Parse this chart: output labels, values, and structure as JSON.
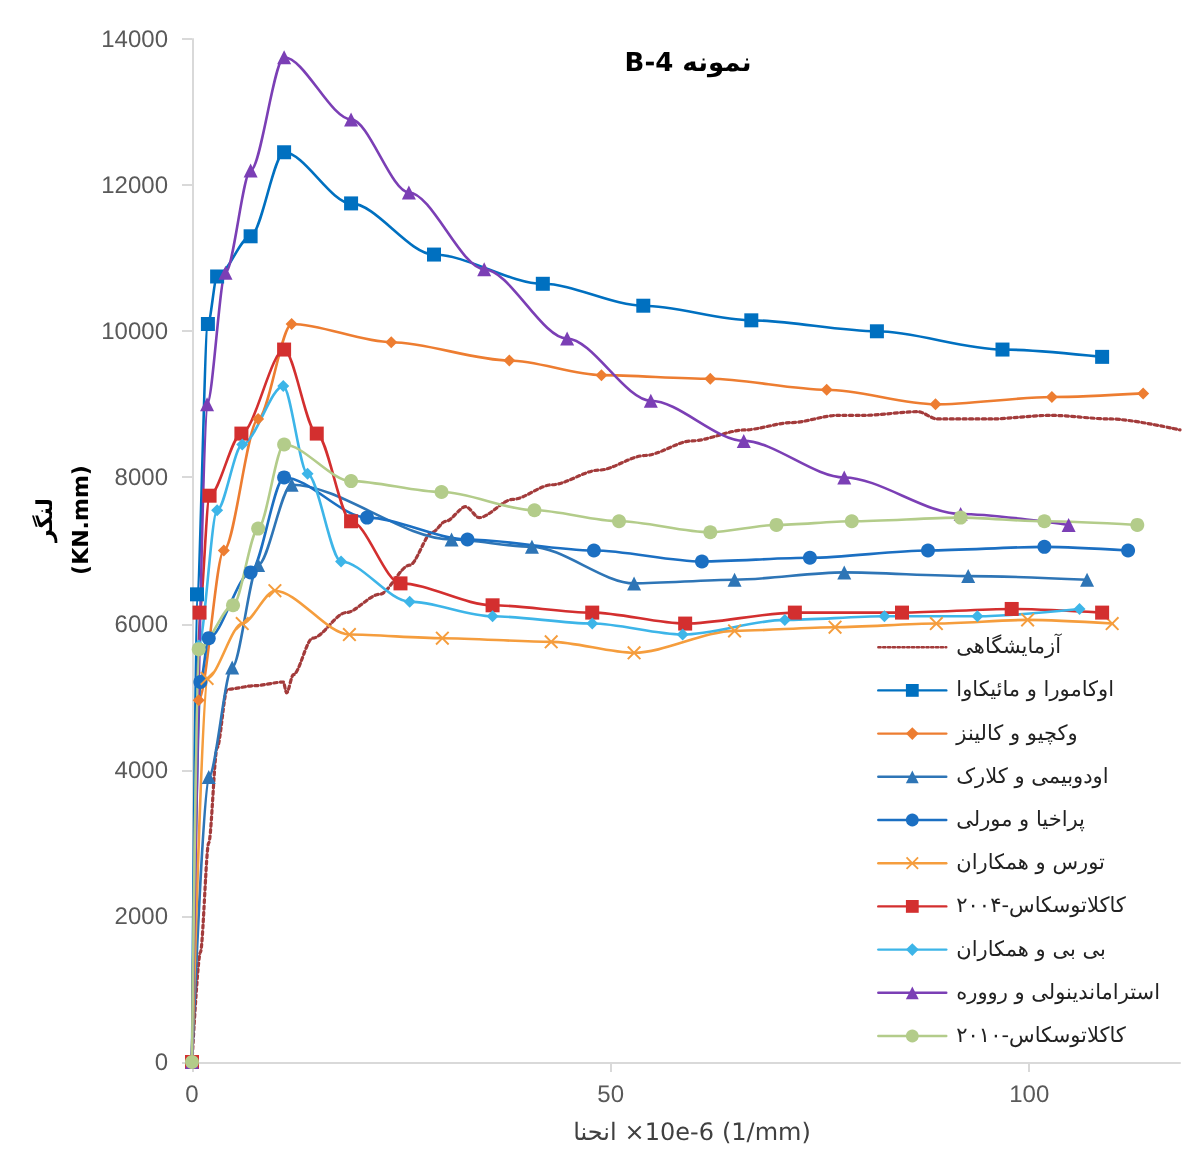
{
  "chart_data": {
    "type": "line",
    "title": "نمونه B-4",
    "xlabel": "انحنا ×10e-6 (1/mm)",
    "ylabel": "لنگر (KN.mm)",
    "xlim": [
      0,
      118
    ],
    "xticks": [
      0,
      50,
      100
    ],
    "ylim": [
      0,
      14000
    ],
    "yticks": [
      0,
      2000,
      4000,
      6000,
      8000,
      10000,
      12000,
      14000
    ],
    "legend": "bottom right",
    "series": [
      {
        "name": "آزمایشگاهی",
        "color": "#a33b3b",
        "marker": "none",
        "line_style": "dotted",
        "x": [
          0,
          1.0,
          2.0,
          3.0,
          4.2,
          7.5,
          10.9,
          11.3,
          12.1,
          14.4,
          18.4,
          22.4,
          26.0,
          28.7,
          30.3,
          32.7,
          34.3,
          38.3,
          43.0,
          48.6,
          54.1,
          59.7,
          66.0,
          71.6,
          77.1,
          80.3,
          86.7,
          89.0,
          95.4,
          102.5,
          109.7,
          118
        ],
        "values": [
          0,
          1500,
          3000,
          4300,
          5100,
          5150,
          5200,
          5050,
          5300,
          5800,
          6150,
          6400,
          6800,
          7250,
          7400,
          7600,
          7450,
          7700,
          7900,
          8100,
          8300,
          8500,
          8650,
          8750,
          8850,
          8850,
          8900,
          8800,
          8800,
          8850,
          8800,
          8650
        ]
      },
      {
        "name": "اوکامورا و مائیکاوا",
        "color": "#0070c0",
        "marker": "square",
        "line_style": "solid",
        "x": [
          0,
          0.6,
          1.9,
          3.0,
          7.0,
          11.0,
          19.0,
          28.9,
          41.9,
          53.9,
          66.8,
          81.8,
          96.8,
          108.7
        ],
        "values": [
          0,
          6400,
          10100,
          10750,
          11300,
          12450,
          11750,
          11050,
          10650,
          10350,
          10150,
          10000,
          9750,
          9650
        ]
      },
      {
        "name": "وکچیو و کالینز",
        "color": "#ed7d31",
        "marker": "diamond",
        "line_style": "solid",
        "x": [
          0,
          0.8,
          3.8,
          7.9,
          11.9,
          23.8,
          37.9,
          48.9,
          61.9,
          75.8,
          88.8,
          102.7,
          113.6
        ],
        "values": [
          0,
          4950,
          7000,
          8800,
          10100,
          9850,
          9600,
          9400,
          9350,
          9200,
          9000,
          9100,
          9150
        ]
      },
      {
        "name": "اودوبیمی و کلارک",
        "color": "#2e75b6",
        "marker": "triangle",
        "line_style": "solid",
        "x": [
          0,
          2.0,
          4.8,
          7.9,
          11.9,
          31.0,
          40.6,
          52.8,
          64.8,
          77.9,
          92.7,
          106.9
        ],
        "values": [
          0,
          3900,
          5400,
          6800,
          7900,
          7150,
          7050,
          6550,
          6600,
          6700,
          6650,
          6600
        ]
      },
      {
        "name": "پراخیا و مورلی",
        "color": "#1b6fc2",
        "marker": "circle",
        "line_style": "solid",
        "x": [
          0,
          1.0,
          2.0,
          7.0,
          11.0,
          20.9,
          32.9,
          48.0,
          60.9,
          73.8,
          87.9,
          101.8,
          111.8
        ],
        "values": [
          0,
          5200,
          5800,
          6700,
          8000,
          7450,
          7150,
          7000,
          6850,
          6900,
          7000,
          7050,
          7000
        ]
      },
      {
        "name": "تورس و همکاران",
        "color": "#f59d3d",
        "marker": "cross",
        "line_style": "solid",
        "x": [
          0,
          1.8,
          6.0,
          9.9,
          18.8,
          29.9,
          42.9,
          52.8,
          64.8,
          76.8,
          88.9,
          99.8,
          109.9
        ],
        "values": [
          0,
          5250,
          6000,
          6450,
          5850,
          5800,
          5750,
          5600,
          5900,
          5950,
          6000,
          6050,
          6000
        ]
      },
      {
        "name": "کاکلاتوسکاس-۲۰۰۴",
        "color": "#d32f2f",
        "marker": "square",
        "line_style": "solid",
        "x": [
          0,
          0.9,
          2.1,
          5.9,
          11.0,
          14.9,
          19.0,
          24.9,
          35.9,
          47.8,
          58.9,
          72.0,
          84.8,
          97.9,
          108.7
        ],
        "values": [
          0,
          6150,
          7750,
          8600,
          9750,
          8600,
          7400,
          6550,
          6250,
          6150,
          6000,
          6150,
          6150,
          6200,
          6150
        ]
      },
      {
        "name": "بی بی و همکاران",
        "color": "#3db5e8",
        "marker": "diamond",
        "line_style": "solid",
        "x": [
          0,
          0.8,
          3.0,
          6.0,
          10.9,
          13.8,
          17.8,
          26.0,
          35.9,
          47.8,
          58.6,
          70.8,
          82.7,
          93.8,
          106.0
        ],
        "values": [
          0,
          5700,
          7550,
          8450,
          9250,
          8050,
          6850,
          6300,
          6100,
          6000,
          5850,
          6050,
          6100,
          6100,
          6200
        ]
      },
      {
        "name": "استراماندینولی و رووره",
        "color": "#7b3fb5",
        "marker": "triangle",
        "line_style": "solid",
        "x": [
          0,
          1.8,
          4.0,
          7.0,
          11.0,
          19.0,
          25.9,
          34.9,
          44.8,
          54.8,
          65.9,
          77.9,
          91.8,
          104.7
        ],
        "values": [
          0,
          9000,
          10800,
          12200,
          13750,
          12900,
          11900,
          10850,
          9900,
          9050,
          8500,
          8000,
          7500,
          7350
        ]
      },
      {
        "name": "کاکلاتوسکاس-۲۰۱۰",
        "color": "#b3cc8a",
        "marker": "circle",
        "line_style": "solid",
        "x": [
          0,
          0.8,
          4.9,
          7.9,
          11.0,
          19.0,
          29.8,
          40.9,
          51.0,
          61.9,
          69.8,
          78.8,
          91.8,
          101.8,
          112.9
        ],
        "values": [
          0,
          5650,
          6250,
          7300,
          8450,
          7950,
          7800,
          7550,
          7400,
          7250,
          7350,
          7400,
          7450,
          7400,
          7350
        ]
      }
    ]
  }
}
